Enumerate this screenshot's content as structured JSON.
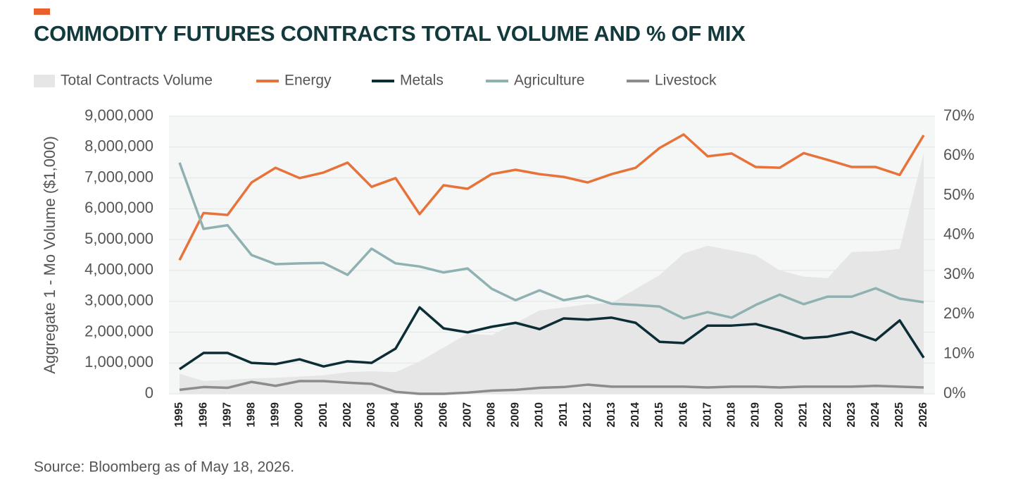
{
  "chart_data": {
    "type": "line",
    "title": "COMMODITY FUTURES CONTRACTS TOTAL VOLUME AND % OF MIX",
    "y_label": "Aggregate 1 - Mo Volume ($1,000)",
    "source": "Source: Bloomberg as of May 18, 2026.",
    "categories": [
      "1995",
      "1996",
      "1997",
      "1998",
      "1999",
      "2000",
      "2001",
      "2002",
      "2003",
      "2004",
      "2005",
      "2006",
      "2007",
      "2008",
      "2009",
      "2010",
      "2011",
      "2012",
      "2013",
      "2014",
      "2015",
      "2016",
      "2017",
      "2018",
      "2019",
      "2020",
      "2021",
      "2022",
      "2023",
      "2024",
      "2025",
      "2026"
    ],
    "ylim": [
      0,
      9000000
    ],
    "yticks": [
      0,
      {
        "value": 1000000,
        "label": "1,000,000"
      },
      {
        "value": 2000000,
        "label": "2,000,000"
      },
      {
        "value": 3000000,
        "label": "3,000,000"
      },
      {
        "value": 4000000,
        "label": "4,000,000"
      },
      {
        "value": 5000000,
        "label": "5,000,000"
      },
      {
        "value": 6000000,
        "label": "6,000,000"
      },
      {
        "value": 7000000,
        "label": "7,000,000"
      },
      {
        "value": 8000000,
        "label": "8,000,000"
      },
      {
        "value": 9000000,
        "label": "9,000,000"
      }
    ],
    "y2lim": [
      0,
      70
    ],
    "y2ticks": [
      {
        "value": 0,
        "label": "0%"
      },
      {
        "value": 10,
        "label": "10%"
      },
      {
        "value": 20,
        "label": "20%"
      },
      {
        "value": 30,
        "label": "30%"
      },
      {
        "value": 40,
        "label": "40%"
      },
      {
        "value": 50,
        "label": "50%"
      },
      {
        "value": 60,
        "label": "60%"
      },
      {
        "value": 70,
        "label": "70%"
      }
    ],
    "grid": true,
    "series": [
      {
        "name": "Total Contracts Volume",
        "type": "area",
        "color": "#e6e6e6",
        "values": [
          650000,
          420000,
          450000,
          500000,
          520000,
          560000,
          600000,
          700000,
          730000,
          700000,
          1050000,
          1500000,
          1950000,
          1900000,
          2300000,
          2700000,
          2800000,
          2900000,
          2950000,
          3400000,
          3850000,
          4550000,
          4800000,
          4650000,
          4500000,
          4000000,
          3800000,
          3750000,
          4600000,
          4620000,
          4700000,
          7800000
        ]
      },
      {
        "name": "Energy",
        "type": "line",
        "axis": "y2",
        "color": "#e8733a",
        "values": [
          33.7,
          45.6,
          45.1,
          53.3,
          57.0,
          54.4,
          55.8,
          58.3,
          52.2,
          54.4,
          45.3,
          52.6,
          51.7,
          55.4,
          56.5,
          55.4,
          54.7,
          53.3,
          55.4,
          57.0,
          62.0,
          65.4,
          59.9,
          60.6,
          57.2,
          57.0,
          60.7,
          59.0,
          57.2,
          57.2,
          55.2,
          65.2
        ]
      },
      {
        "name": "Metals",
        "type": "line",
        "axis": "y2",
        "color": "#0d2d36",
        "values": [
          6.2,
          10.3,
          10.3,
          7.8,
          7.5,
          8.7,
          6.9,
          8.2,
          7.8,
          11.4,
          21.8,
          16.5,
          15.5,
          16.9,
          17.9,
          16.3,
          19.0,
          18.7,
          19.2,
          17.9,
          13.1,
          12.8,
          17.2,
          17.2,
          17.6,
          16.0,
          14.0,
          14.4,
          15.6,
          13.5,
          18.5,
          9.1
        ]
      },
      {
        "name": "Agriculture",
        "type": "line",
        "axis": "y2",
        "color": "#8fb1b1",
        "values": [
          58.3,
          41.6,
          42.5,
          35.0,
          32.7,
          32.9,
          33.0,
          30.0,
          36.6,
          32.9,
          32.1,
          30.6,
          31.6,
          26.5,
          23.6,
          26.1,
          23.6,
          24.7,
          22.7,
          22.4,
          22.0,
          19.0,
          20.6,
          19.2,
          22.4,
          25.0,
          22.6,
          24.5,
          24.5,
          26.6,
          24.0,
          23.1
        ]
      },
      {
        "name": "Livestock",
        "type": "line",
        "axis": "y2",
        "color": "#8c8c8c",
        "values": [
          1.0,
          1.7,
          1.5,
          3.0,
          2.0,
          3.2,
          3.2,
          2.8,
          2.5,
          0.5,
          0,
          0,
          0.3,
          0.8,
          1.0,
          1.5,
          1.7,
          2.3,
          1.8,
          1.8,
          1.8,
          1.8,
          1.6,
          1.8,
          1.8,
          1.6,
          1.8,
          1.8,
          1.8,
          2.0,
          1.8,
          1.6
        ]
      }
    ]
  }
}
